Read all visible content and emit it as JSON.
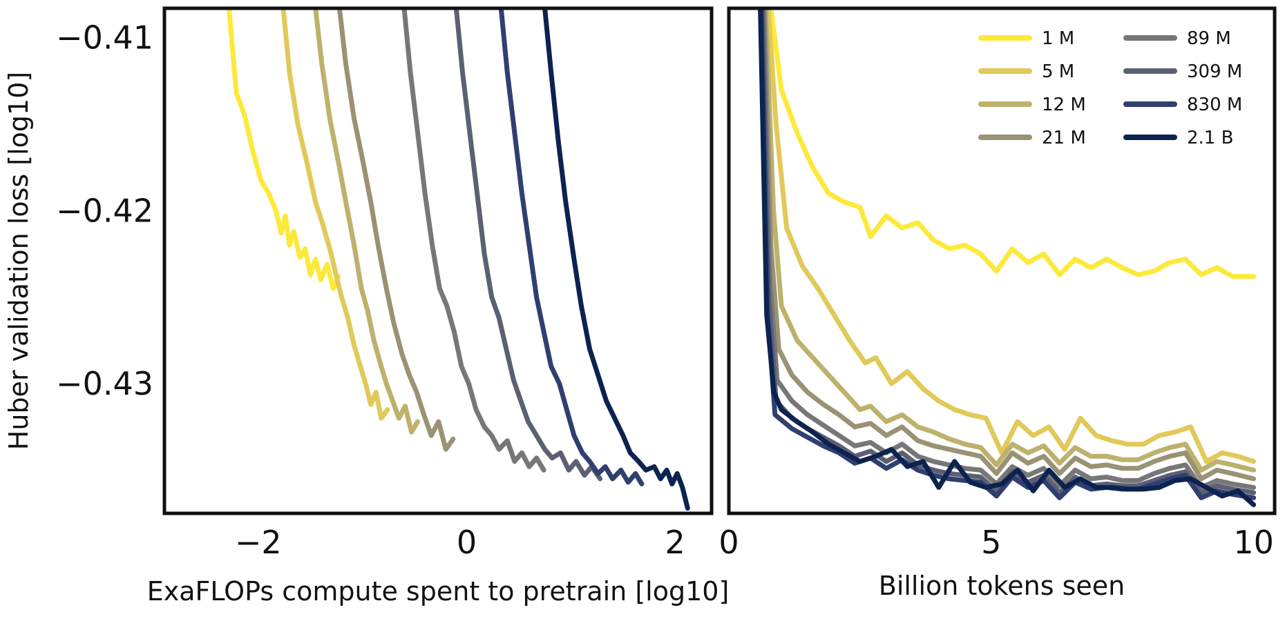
{
  "chart_data": [
    {
      "type": "line",
      "panel": "left",
      "xlabel": "ExaFLOPs compute spent to pretrain [log10]",
      "ylabel": "Huber validation loss [log10]",
      "xlim": [
        -2.9,
        2.35
      ],
      "ylim": [
        -0.4375,
        -0.4083
      ],
      "x_ticks": [
        -2,
        0,
        2
      ],
      "x_tick_labels": [
        "−2",
        "0",
        "2"
      ],
      "y_ticks": [
        -0.41,
        -0.42,
        -0.43
      ],
      "y_tick_labels": [
        "−0.41",
        "−0.42",
        "−0.43"
      ],
      "grid": false,
      "series": [
        {
          "name": "1 M",
          "color": "#fde93a",
          "x": [
            -2.28,
            -2.21,
            -2.13,
            -2.05,
            -1.97,
            -1.9,
            -1.83,
            -1.78,
            -1.74,
            -1.7,
            -1.66,
            -1.6,
            -1.55,
            -1.5,
            -1.45,
            -1.4,
            -1.34,
            -1.28,
            -1.23
          ],
          "y": [
            -0.4083,
            -0.4132,
            -0.4145,
            -0.4166,
            -0.4183,
            -0.419,
            -0.42,
            -0.4213,
            -0.4203,
            -0.422,
            -0.4212,
            -0.4227,
            -0.4222,
            -0.4237,
            -0.4228,
            -0.424,
            -0.4231,
            -0.4245,
            -0.4238
          ]
        },
        {
          "name": "5 M",
          "color": "#e1c95a",
          "x": [
            -1.76,
            -1.7,
            -1.62,
            -1.53,
            -1.45,
            -1.38,
            -1.3,
            -1.25,
            -1.2,
            -1.14,
            -1.08,
            -1.02,
            -0.97,
            -0.92,
            -0.87,
            -0.82,
            -0.76
          ],
          "y": [
            -0.4083,
            -0.412,
            -0.415,
            -0.4173,
            -0.4195,
            -0.4208,
            -0.4225,
            -0.4238,
            -0.425,
            -0.4262,
            -0.4278,
            -0.429,
            -0.43,
            -0.4312,
            -0.4305,
            -0.432,
            -0.4315
          ]
        },
        {
          "name": "12 M",
          "color": "#bdb16c",
          "x": [
            -1.45,
            -1.39,
            -1.31,
            -1.23,
            -1.15,
            -1.08,
            -1.01,
            -0.95,
            -0.89,
            -0.83,
            -0.77,
            -0.71,
            -0.65,
            -0.59,
            -0.53,
            -0.47
          ],
          "y": [
            -0.4083,
            -0.4115,
            -0.4148,
            -0.4172,
            -0.4198,
            -0.422,
            -0.4245,
            -0.4258,
            -0.4275,
            -0.4288,
            -0.43,
            -0.431,
            -0.432,
            -0.4313,
            -0.4328,
            -0.4322
          ]
        },
        {
          "name": "21 M",
          "color": "#9a9274",
          "x": [
            -1.22,
            -1.16,
            -1.08,
            -1.0,
            -0.92,
            -0.85,
            -0.77,
            -0.7,
            -0.62,
            -0.55,
            -0.48,
            -0.41,
            -0.34,
            -0.27,
            -0.2,
            -0.13
          ],
          "y": [
            -0.4083,
            -0.4115,
            -0.4147,
            -0.417,
            -0.4195,
            -0.422,
            -0.4245,
            -0.4265,
            -0.4283,
            -0.4295,
            -0.4305,
            -0.4318,
            -0.433,
            -0.4322,
            -0.4338,
            -0.4332
          ]
        },
        {
          "name": "89 M",
          "color": "#787778",
          "x": [
            -0.6,
            -0.54,
            -0.47,
            -0.4,
            -0.33,
            -0.26,
            -0.19,
            -0.12,
            -0.05,
            0.02,
            0.09,
            0.17,
            0.24,
            0.31,
            0.39,
            0.46,
            0.53,
            0.6,
            0.67,
            0.74
          ],
          "y": [
            -0.4083,
            -0.412,
            -0.4155,
            -0.419,
            -0.422,
            -0.4245,
            -0.4255,
            -0.427,
            -0.429,
            -0.43,
            -0.4315,
            -0.4325,
            -0.433,
            -0.4338,
            -0.4333,
            -0.4345,
            -0.434,
            -0.4348,
            -0.4343,
            -0.435
          ]
        },
        {
          "name": "309 M",
          "color": "#5c6073",
          "x": [
            -0.1,
            -0.04,
            0.03,
            0.1,
            0.17,
            0.24,
            0.31,
            0.38,
            0.45,
            0.52,
            0.59,
            0.67,
            0.75,
            0.82,
            0.9,
            0.98,
            1.05,
            1.13,
            1.2,
            1.28
          ],
          "y": [
            -0.4083,
            -0.412,
            -0.4155,
            -0.419,
            -0.4225,
            -0.425,
            -0.4262,
            -0.428,
            -0.4298,
            -0.431,
            -0.4322,
            -0.433,
            -0.4338,
            -0.4343,
            -0.434,
            -0.435,
            -0.4345,
            -0.4353,
            -0.4348,
            -0.4355
          ]
        },
        {
          "name": "830 M",
          "color": "#303f70",
          "x": [
            0.33,
            0.39,
            0.46,
            0.53,
            0.6,
            0.67,
            0.74,
            0.81,
            0.89,
            0.96,
            1.03,
            1.11,
            1.18,
            1.26,
            1.33,
            1.4,
            1.48,
            1.55,
            1.62,
            1.68
          ],
          "y": [
            -0.4083,
            -0.412,
            -0.4155,
            -0.419,
            -0.422,
            -0.425,
            -0.427,
            -0.429,
            -0.43,
            -0.4315,
            -0.433,
            -0.434,
            -0.4345,
            -0.4352,
            -0.4348,
            -0.4355,
            -0.435,
            -0.4357,
            -0.4352,
            -0.4358
          ]
        },
        {
          "name": "2.1 B",
          "color": "#0c2350",
          "x": [
            0.75,
            0.81,
            0.88,
            0.95,
            1.03,
            1.1,
            1.18,
            1.26,
            1.34,
            1.42,
            1.5,
            1.57,
            1.65,
            1.72,
            1.8,
            1.86,
            1.92,
            1.97,
            2.02,
            2.07,
            2.12
          ],
          "y": [
            -0.4083,
            -0.412,
            -0.416,
            -0.4195,
            -0.4228,
            -0.4255,
            -0.428,
            -0.4295,
            -0.431,
            -0.432,
            -0.433,
            -0.434,
            -0.4345,
            -0.435,
            -0.4348,
            -0.4355,
            -0.435,
            -0.4358,
            -0.4352,
            -0.436,
            -0.4372
          ]
        }
      ]
    },
    {
      "type": "line",
      "panel": "right",
      "xlabel": "Billion tokens seen",
      "ylabel": "",
      "xlim": [
        0,
        10.4
      ],
      "ylim": [
        -0.4375,
        -0.4083
      ],
      "x_ticks": [
        0,
        5,
        10
      ],
      "x_tick_labels": [
        "0",
        "5",
        "10"
      ],
      "grid": false,
      "legend": "top-right",
      "series": [
        {
          "name": "1 M",
          "color": "#fde93a",
          "x": [
            0.8,
            1.0,
            1.3,
            1.6,
            1.9,
            2.2,
            2.5,
            2.7,
            3.0,
            3.3,
            3.6,
            3.9,
            4.2,
            4.5,
            4.8,
            5.1,
            5.4,
            5.7,
            6.0,
            6.3,
            6.6,
            6.9,
            7.2,
            7.5,
            7.8,
            8.1,
            8.4,
            8.7,
            9.0,
            9.3,
            9.6,
            10.0
          ],
          "y": [
            -0.4083,
            -0.413,
            -0.4155,
            -0.4175,
            -0.419,
            -0.4195,
            -0.4198,
            -0.4215,
            -0.4203,
            -0.421,
            -0.4207,
            -0.4217,
            -0.4222,
            -0.422,
            -0.4225,
            -0.4235,
            -0.4222,
            -0.423,
            -0.4225,
            -0.4237,
            -0.4228,
            -0.4233,
            -0.4228,
            -0.4233,
            -0.4237,
            -0.4235,
            -0.423,
            -0.4228,
            -0.4237,
            -0.4233,
            -0.4238,
            -0.4238
          ]
        },
        {
          "name": "5 M",
          "color": "#e1c95a",
          "x": [
            0.75,
            0.9,
            1.1,
            1.4,
            1.7,
            2.0,
            2.3,
            2.6,
            2.8,
            3.1,
            3.4,
            3.7,
            4.0,
            4.3,
            4.6,
            4.9,
            5.2,
            5.5,
            5.8,
            6.1,
            6.4,
            6.7,
            7.0,
            7.3,
            7.6,
            7.9,
            8.2,
            8.5,
            8.8,
            9.1,
            9.4,
            9.7,
            10.0
          ],
          "y": [
            -0.4083,
            -0.415,
            -0.421,
            -0.4232,
            -0.4245,
            -0.426,
            -0.4275,
            -0.4288,
            -0.4285,
            -0.43,
            -0.4293,
            -0.4303,
            -0.431,
            -0.4315,
            -0.4318,
            -0.432,
            -0.434,
            -0.4322,
            -0.433,
            -0.4325,
            -0.4338,
            -0.432,
            -0.433,
            -0.4333,
            -0.4335,
            -0.4335,
            -0.433,
            -0.4328,
            -0.4325,
            -0.4345,
            -0.434,
            -0.4342,
            -0.4345
          ]
        },
        {
          "name": "12 M",
          "color": "#bdb16c",
          "x": [
            0.7,
            0.85,
            1.0,
            1.3,
            1.6,
            1.9,
            2.2,
            2.5,
            2.7,
            3.0,
            3.3,
            3.6,
            3.9,
            4.2,
            4.5,
            4.8,
            5.1,
            5.4,
            5.7,
            6.0,
            6.3,
            6.6,
            6.9,
            7.2,
            7.5,
            7.8,
            8.1,
            8.4,
            8.7,
            9.0,
            9.3,
            9.6,
            10.0
          ],
          "y": [
            -0.4083,
            -0.42,
            -0.4255,
            -0.4275,
            -0.4285,
            -0.4295,
            -0.4305,
            -0.4315,
            -0.4313,
            -0.4322,
            -0.4318,
            -0.4325,
            -0.4328,
            -0.4332,
            -0.4335,
            -0.4337,
            -0.4347,
            -0.4335,
            -0.434,
            -0.4336,
            -0.4346,
            -0.4337,
            -0.4342,
            -0.4342,
            -0.4344,
            -0.4344,
            -0.434,
            -0.4337,
            -0.4335,
            -0.435,
            -0.4345,
            -0.4347,
            -0.435
          ]
        },
        {
          "name": "21 M",
          "color": "#9a9274",
          "x": [
            0.68,
            0.8,
            0.95,
            1.2,
            1.5,
            1.8,
            2.1,
            2.4,
            2.7,
            3.0,
            3.3,
            3.6,
            3.9,
            4.2,
            4.5,
            4.8,
            5.1,
            5.4,
            5.7,
            6.0,
            6.3,
            6.6,
            6.9,
            7.2,
            7.5,
            7.8,
            8.1,
            8.4,
            8.7,
            9.0,
            9.3,
            9.6,
            10.0
          ],
          "y": [
            -0.4083,
            -0.422,
            -0.428,
            -0.4295,
            -0.4305,
            -0.4312,
            -0.4318,
            -0.4325,
            -0.4323,
            -0.433,
            -0.4325,
            -0.4333,
            -0.4336,
            -0.4338,
            -0.434,
            -0.4342,
            -0.4352,
            -0.434,
            -0.4346,
            -0.4342,
            -0.4352,
            -0.4343,
            -0.4348,
            -0.4347,
            -0.4349,
            -0.4349,
            -0.4345,
            -0.4342,
            -0.434,
            -0.4355,
            -0.435,
            -0.4352,
            -0.4355
          ]
        },
        {
          "name": "89 M",
          "color": "#787778",
          "x": [
            0.66,
            0.78,
            0.92,
            1.2,
            1.5,
            1.8,
            2.1,
            2.4,
            2.7,
            3.0,
            3.3,
            3.6,
            3.9,
            4.2,
            4.5,
            4.8,
            5.1,
            5.4,
            5.7,
            6.0,
            6.3,
            6.6,
            6.9,
            7.2,
            7.5,
            7.8,
            8.1,
            8.4,
            8.7,
            9.0,
            9.3,
            9.6,
            10.0
          ],
          "y": [
            -0.4083,
            -0.424,
            -0.4298,
            -0.431,
            -0.4318,
            -0.4324,
            -0.433,
            -0.4336,
            -0.4334,
            -0.434,
            -0.4335,
            -0.4342,
            -0.4345,
            -0.4347,
            -0.4349,
            -0.435,
            -0.4358,
            -0.4348,
            -0.4353,
            -0.4349,
            -0.4359,
            -0.435,
            -0.4355,
            -0.4354,
            -0.4356,
            -0.4356,
            -0.4352,
            -0.4349,
            -0.4347,
            -0.436,
            -0.4356,
            -0.4358,
            -0.436
          ]
        },
        {
          "name": "309 M",
          "color": "#5c6073",
          "x": [
            0.64,
            0.76,
            0.9,
            1.2,
            1.5,
            1.8,
            2.1,
            2.4,
            2.7,
            3.0,
            3.3,
            3.6,
            3.9,
            4.2,
            4.5,
            4.8,
            5.1,
            5.4,
            5.7,
            6.0,
            6.3,
            6.6,
            6.9,
            7.2,
            7.5,
            7.8,
            8.1,
            8.4,
            8.7,
            9.0,
            9.3,
            9.6,
            10.0
          ],
          "y": [
            -0.4083,
            -0.425,
            -0.431,
            -0.432,
            -0.4326,
            -0.4331,
            -0.4336,
            -0.4342,
            -0.4339,
            -0.4345,
            -0.434,
            -0.4347,
            -0.435,
            -0.4352,
            -0.4353,
            -0.4354,
            -0.4362,
            -0.4351,
            -0.4357,
            -0.4353,
            -0.4363,
            -0.4354,
            -0.4359,
            -0.4358,
            -0.4359,
            -0.4359,
            -0.4356,
            -0.4353,
            -0.4351,
            -0.4363,
            -0.4359,
            -0.4361,
            -0.4363
          ]
        },
        {
          "name": "830 M",
          "color": "#303f70",
          "x": [
            0.62,
            0.74,
            0.88,
            1.2,
            1.5,
            1.8,
            2.1,
            2.4,
            2.7,
            3.0,
            3.3,
            3.6,
            3.9,
            4.2,
            4.5,
            4.8,
            5.1,
            5.4,
            5.7,
            6.0,
            6.3,
            6.6,
            6.9,
            7.2,
            7.5,
            7.8,
            8.1,
            8.4,
            8.7,
            9.0,
            9.3,
            9.6,
            10.0
          ],
          "y": [
            -0.4083,
            -0.426,
            -0.4318,
            -0.4326,
            -0.4331,
            -0.4336,
            -0.434,
            -0.4346,
            -0.4343,
            -0.4349,
            -0.4344,
            -0.435,
            -0.4353,
            -0.4355,
            -0.4356,
            -0.4357,
            -0.4365,
            -0.4354,
            -0.436,
            -0.4356,
            -0.4366,
            -0.4357,
            -0.4361,
            -0.436,
            -0.4361,
            -0.4361,
            -0.4358,
            -0.4355,
            -0.4353,
            -0.4366,
            -0.4362,
            -0.4364,
            -0.4366
          ]
        },
        {
          "name": "2.1 B",
          "color": "#0c2350",
          "x": [
            0.6,
            0.72,
            0.86,
            1.0,
            1.3,
            1.6,
            1.9,
            2.2,
            2.5,
            2.8,
            3.1,
            3.4,
            3.7,
            4.0,
            4.3,
            4.6,
            4.9,
            5.2,
            5.5,
            5.8,
            6.1,
            6.4,
            6.7,
            7.0,
            7.3,
            7.6,
            7.9,
            8.2,
            8.5,
            8.8,
            9.1,
            9.4,
            9.7,
            10.0
          ],
          "y": [
            -0.4083,
            -0.426,
            -0.4305,
            -0.4315,
            -0.4322,
            -0.4328,
            -0.4335,
            -0.434,
            -0.4345,
            -0.4342,
            -0.4338,
            -0.4348,
            -0.4345,
            -0.436,
            -0.4345,
            -0.4357,
            -0.436,
            -0.4358,
            -0.435,
            -0.4362,
            -0.435,
            -0.436,
            -0.4355,
            -0.436,
            -0.436,
            -0.4361,
            -0.4361,
            -0.436,
            -0.4356,
            -0.4355,
            -0.436,
            -0.4365,
            -0.4362,
            -0.437
          ]
        }
      ]
    }
  ]
}
